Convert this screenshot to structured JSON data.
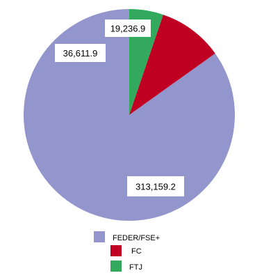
{
  "chart_data": {
    "type": "pie",
    "categories": [
      "FEDER/FSE+",
      "FC",
      "FTJ"
    ],
    "values": [
      313159.2,
      36611.9,
      19236.9
    ],
    "data_labels": [
      "313,159.2",
      "36,611.9",
      "19,236.9"
    ],
    "colors": [
      "#9396cc",
      "#c00022",
      "#33a95d"
    ],
    "legend": {
      "position": "bottom",
      "entries": [
        "FEDER/FSE+",
        "FC",
        "FTJ"
      ]
    },
    "title": ""
  }
}
